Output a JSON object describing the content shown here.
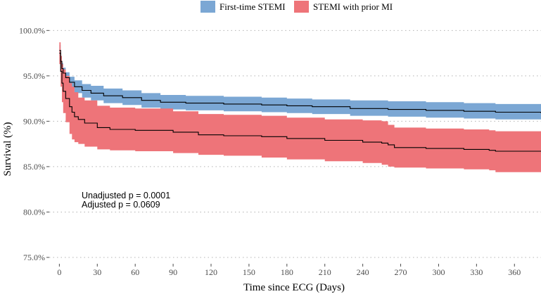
{
  "chart_data": {
    "type": "line",
    "title": "",
    "xlabel": "Time since ECG (Days)",
    "ylabel": "Survival (%)",
    "xlim": [
      -8,
      381
    ],
    "ylim": [
      74.3,
      100.8
    ],
    "x_ticks": [
      0,
      30,
      60,
      90,
      120,
      150,
      180,
      210,
      240,
      270,
      300,
      330,
      360
    ],
    "y_ticks": [
      75,
      80,
      85,
      90,
      95,
      100
    ],
    "y_tick_labels": [
      "75.0%",
      "80.0%",
      "85.0%",
      "90.0%",
      "95.0%",
      "100.0%"
    ],
    "grid": "horizontal dotted",
    "legend_position": "top",
    "series": [
      {
        "name": "First-time STEMI",
        "color": "#7ba7d4",
        "line_color": "#000000",
        "points": [
          [
            0,
            97.8
          ],
          [
            1,
            96.6
          ],
          [
            2,
            95.8
          ],
          [
            3,
            95.3
          ],
          [
            5,
            94.8
          ],
          [
            8,
            94.3
          ],
          [
            12,
            93.8
          ],
          [
            18,
            93.4
          ],
          [
            25,
            93.1
          ],
          [
            35,
            92.8
          ],
          [
            50,
            92.6
          ],
          [
            65,
            92.3
          ],
          [
            80,
            92.1
          ],
          [
            100,
            92.0
          ],
          [
            130,
            91.9
          ],
          [
            160,
            91.8
          ],
          [
            180,
            91.7
          ],
          [
            200,
            91.6
          ],
          [
            230,
            91.4
          ],
          [
            260,
            91.3
          ],
          [
            290,
            91.2
          ],
          [
            320,
            91.1
          ],
          [
            345,
            91.0
          ],
          [
            381,
            90.9
          ]
        ],
        "ci_lower": [
          [
            0,
            97.2
          ],
          [
            1,
            96.0
          ],
          [
            2,
            95.2
          ],
          [
            3,
            94.7
          ],
          [
            5,
            94.2
          ],
          [
            8,
            93.6
          ],
          [
            12,
            93.1
          ],
          [
            18,
            92.6
          ],
          [
            25,
            92.3
          ],
          [
            35,
            92.0
          ],
          [
            50,
            91.8
          ],
          [
            65,
            91.5
          ],
          [
            80,
            91.3
          ],
          [
            100,
            91.2
          ],
          [
            130,
            91.1
          ],
          [
            160,
            91.0
          ],
          [
            180,
            90.9
          ],
          [
            200,
            90.8
          ],
          [
            230,
            90.6
          ],
          [
            260,
            90.5
          ],
          [
            290,
            90.4
          ],
          [
            320,
            90.3
          ],
          [
            345,
            90.2
          ],
          [
            381,
            90.1
          ]
        ],
        "ci_upper": [
          [
            0,
            98.4
          ],
          [
            1,
            97.2
          ],
          [
            2,
            96.4
          ],
          [
            3,
            95.9
          ],
          [
            5,
            95.4
          ],
          [
            8,
            94.9
          ],
          [
            12,
            94.5
          ],
          [
            18,
            94.1
          ],
          [
            25,
            93.9
          ],
          [
            35,
            93.6
          ],
          [
            50,
            93.4
          ],
          [
            65,
            93.1
          ],
          [
            80,
            92.9
          ],
          [
            100,
            92.8
          ],
          [
            130,
            92.7
          ],
          [
            160,
            92.6
          ],
          [
            180,
            92.5
          ],
          [
            200,
            92.4
          ],
          [
            230,
            92.3
          ],
          [
            260,
            92.2
          ],
          [
            290,
            92.1
          ],
          [
            320,
            92.0
          ],
          [
            345,
            91.9
          ],
          [
            381,
            91.8
          ]
        ]
      },
      {
        "name": "STEMI with prior MI",
        "color": "#ee7479",
        "line_color": "#000000",
        "points": [
          [
            0,
            97.5
          ],
          [
            1,
            95.5
          ],
          [
            2,
            94.2
          ],
          [
            3,
            93.3
          ],
          [
            5,
            92.5
          ],
          [
            8,
            91.6
          ],
          [
            10,
            91.0
          ],
          [
            12,
            90.5
          ],
          [
            15,
            90.2
          ],
          [
            20,
            89.8
          ],
          [
            30,
            89.3
          ],
          [
            40,
            89.1
          ],
          [
            60,
            89.0
          ],
          [
            90,
            88.8
          ],
          [
            110,
            88.5
          ],
          [
            130,
            88.4
          ],
          [
            160,
            88.3
          ],
          [
            180,
            88.1
          ],
          [
            210,
            87.9
          ],
          [
            240,
            87.7
          ],
          [
            255,
            87.6
          ],
          [
            260,
            87.4
          ],
          [
            265,
            87.1
          ],
          [
            290,
            87.0
          ],
          [
            320,
            86.9
          ],
          [
            340,
            86.8
          ],
          [
            345,
            86.7
          ],
          [
            381,
            86.7
          ]
        ],
        "ci_lower": [
          [
            0,
            96.3
          ],
          [
            1,
            93.8
          ],
          [
            2,
            92.1
          ],
          [
            3,
            90.9
          ],
          [
            5,
            89.9
          ],
          [
            8,
            88.6
          ],
          [
            10,
            88.0
          ],
          [
            12,
            87.7
          ],
          [
            15,
            87.5
          ],
          [
            20,
            87.2
          ],
          [
            30,
            86.9
          ],
          [
            40,
            86.8
          ],
          [
            60,
            86.7
          ],
          [
            90,
            86.5
          ],
          [
            110,
            86.3
          ],
          [
            130,
            86.2
          ],
          [
            160,
            86.0
          ],
          [
            180,
            85.8
          ],
          [
            210,
            85.6
          ],
          [
            240,
            85.4
          ],
          [
            255,
            85.2
          ],
          [
            260,
            85.0
          ],
          [
            265,
            84.9
          ],
          [
            290,
            84.8
          ],
          [
            320,
            84.7
          ],
          [
            340,
            84.6
          ],
          [
            345,
            84.4
          ],
          [
            381,
            84.4
          ]
        ],
        "ci_upper": [
          [
            0,
            98.7
          ],
          [
            1,
            97.2
          ],
          [
            2,
            96.3
          ],
          [
            3,
            95.7
          ],
          [
            5,
            95.0
          ],
          [
            8,
            94.2
          ],
          [
            10,
            93.8
          ],
          [
            12,
            93.2
          ],
          [
            15,
            92.6
          ],
          [
            20,
            92.3
          ],
          [
            30,
            91.7
          ],
          [
            40,
            91.5
          ],
          [
            60,
            91.4
          ],
          [
            90,
            91.1
          ],
          [
            110,
            90.8
          ],
          [
            130,
            90.7
          ],
          [
            160,
            90.6
          ],
          [
            180,
            90.4
          ],
          [
            210,
            90.2
          ],
          [
            240,
            90.1
          ],
          [
            255,
            90.0
          ],
          [
            260,
            89.6
          ],
          [
            265,
            89.3
          ],
          [
            290,
            89.2
          ],
          [
            320,
            89.1
          ],
          [
            340,
            89.0
          ],
          [
            345,
            88.9
          ],
          [
            381,
            88.9
          ]
        ]
      }
    ],
    "annotations": [
      "Unadjusted p = 0.0001",
      "Adjusted p = 0.0609"
    ]
  }
}
